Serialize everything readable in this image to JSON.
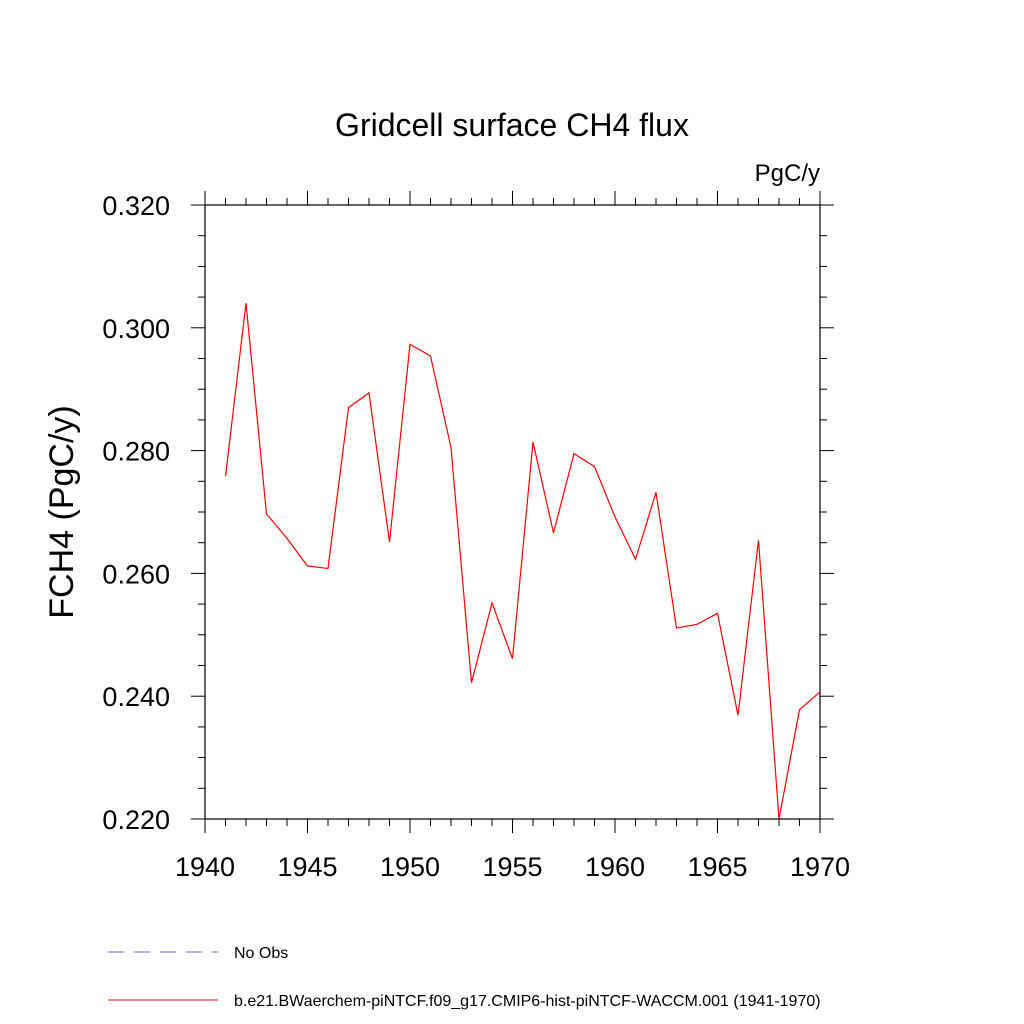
{
  "chart_data": {
    "type": "line",
    "title": "Gridcell surface CH4 flux",
    "units_label": "PgC/y",
    "ylabel": "FCH4  (PgC/y)",
    "xlabel": "",
    "xlim": [
      1940,
      1970
    ],
    "ylim": [
      0.22,
      0.32
    ],
    "x_ticks": [
      1940,
      1945,
      1950,
      1955,
      1960,
      1965,
      1970
    ],
    "x_tick_labels": [
      "1940",
      "1945",
      "1950",
      "1955",
      "1960",
      "1965",
      "1970"
    ],
    "y_ticks": [
      0.22,
      0.24,
      0.26,
      0.28,
      0.3,
      0.32
    ],
    "y_tick_labels": [
      "0.220",
      "0.240",
      "0.260",
      "0.280",
      "0.300",
      "0.320"
    ],
    "grid": false,
    "legend_position": "bottom-left",
    "series": [
      {
        "name": "b.e21.BWaerchem-piNTCF.f09_g17.CMIP6-hist-piNTCF-WACCM.001 (1941-1970)",
        "color": "#ff0000",
        "style": "solid",
        "x": [
          1941,
          1942,
          1943,
          1944,
          1945,
          1946,
          1947,
          1948,
          1949,
          1950,
          1951,
          1952,
          1953,
          1954,
          1955,
          1956,
          1957,
          1958,
          1959,
          1960,
          1961,
          1962,
          1963,
          1964,
          1965,
          1966,
          1967,
          1968,
          1969,
          1970
        ],
        "y": [
          0.2758,
          0.304,
          0.2697,
          0.2657,
          0.2612,
          0.2608,
          0.287,
          0.2894,
          0.2651,
          0.2973,
          0.2954,
          0.2805,
          0.2422,
          0.2552,
          0.2461,
          0.2814,
          0.2666,
          0.2795,
          0.2774,
          0.2692,
          0.2623,
          0.2732,
          0.2511,
          0.2517,
          0.2535,
          0.2369,
          0.2654,
          0.22,
          0.2378,
          0.2407
        ]
      }
    ],
    "legend_entries": [
      {
        "label": "No Obs",
        "color": "#6a5acd",
        "style": "dashed"
      },
      {
        "label": "b.e21.BWaerchem-piNTCF.f09_g17.CMIP6-hist-piNTCF-WACCM.001 (1941-1970)",
        "color": "#ff0000",
        "style": "solid"
      }
    ]
  }
}
